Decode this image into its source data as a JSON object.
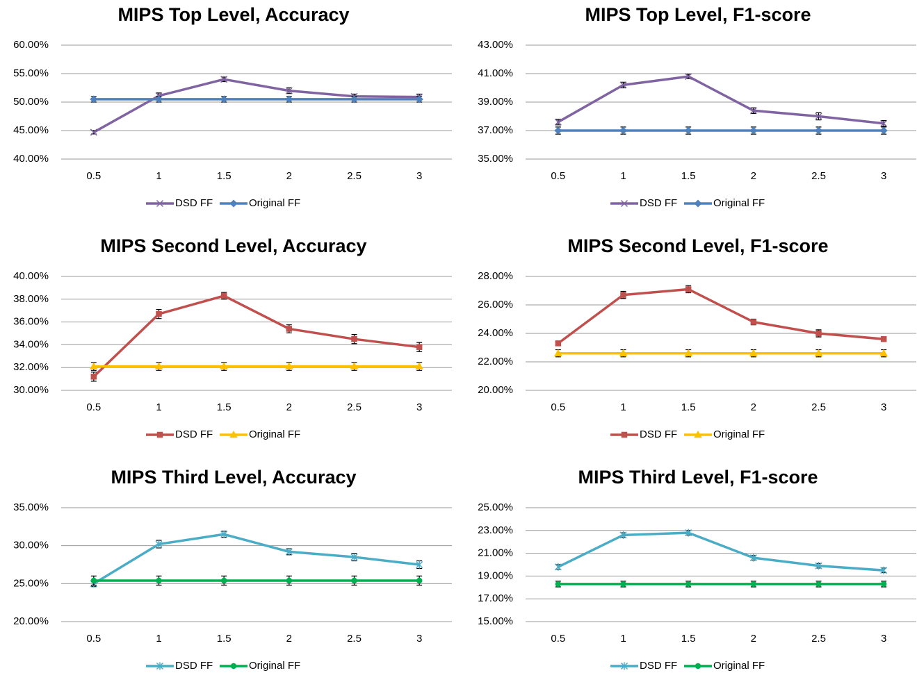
{
  "chart_data": [
    {
      "type": "line",
      "title": "MIPS Top Level, Accuracy",
      "categories": [
        "0.5",
        "1",
        "1.5",
        "2",
        "2.5",
        "3"
      ],
      "series": [
        {
          "name": "DSD FF",
          "color": "#8064a2",
          "marker": "x",
          "values": [
            44.7,
            51.1,
            54.0,
            52.0,
            51.0,
            50.9
          ],
          "errors": [
            0.3,
            0.5,
            0.4,
            0.5,
            0.4,
            0.5
          ]
        },
        {
          "name": "Original FF",
          "color": "#4f81bd",
          "marker": "diamond",
          "values": [
            50.5,
            50.5,
            50.5,
            50.5,
            50.5,
            50.5
          ],
          "errors": [
            0.5,
            0.5,
            0.5,
            0.5,
            0.5,
            0.5
          ]
        }
      ],
      "ylim": [
        40,
        60
      ],
      "yticks": [
        {
          "value": 40,
          "label": "40.00%"
        },
        {
          "value": 45,
          "label": "45.00%"
        },
        {
          "value": 50,
          "label": "50.00%"
        },
        {
          "value": 55,
          "label": "55.00%"
        },
        {
          "value": 60,
          "label": "60.00%"
        }
      ],
      "grid": true,
      "legend": "bottom"
    },
    {
      "type": "line",
      "title": "MIPS Top Level, F1-score",
      "categories": [
        "0.5",
        "1",
        "1.5",
        "2",
        "2.5",
        "3"
      ],
      "series": [
        {
          "name": "DSD FF",
          "color": "#8064a2",
          "marker": "x",
          "values": [
            37.6,
            40.2,
            40.8,
            38.4,
            38.0,
            37.5
          ],
          "errors": [
            0.2,
            0.2,
            0.15,
            0.2,
            0.25,
            0.2
          ]
        },
        {
          "name": "Original FF",
          "color": "#4f81bd",
          "marker": "diamond",
          "values": [
            37.0,
            37.0,
            37.0,
            37.0,
            37.0,
            37.0
          ],
          "errors": [
            0.25,
            0.25,
            0.25,
            0.25,
            0.25,
            0.25
          ]
        }
      ],
      "ylim": [
        35,
        43
      ],
      "yticks": [
        {
          "value": 35,
          "label": "35.00%"
        },
        {
          "value": 37,
          "label": "37.00%"
        },
        {
          "value": 39,
          "label": "39.00%"
        },
        {
          "value": 41,
          "label": "41.00%"
        },
        {
          "value": 43,
          "label": "43.00%"
        }
      ],
      "grid": true,
      "legend": "bottom"
    },
    {
      "type": "line",
      "title": "MIPS Second Level, Accuracy",
      "categories": [
        "0.5",
        "1",
        "1.5",
        "2",
        "2.5",
        "3"
      ],
      "series": [
        {
          "name": "DSD FF",
          "color": "#c0504d",
          "marker": "square",
          "values": [
            31.2,
            36.7,
            38.3,
            35.4,
            34.5,
            33.8
          ],
          "errors": [
            0.4,
            0.4,
            0.3,
            0.35,
            0.4,
            0.4
          ]
        },
        {
          "name": "Original FF",
          "color": "#ffc000",
          "marker": "triangle",
          "values": [
            32.1,
            32.1,
            32.1,
            32.1,
            32.1,
            32.1
          ],
          "errors": [
            0.35,
            0.35,
            0.35,
            0.35,
            0.35,
            0.35
          ]
        }
      ],
      "ylim": [
        30,
        40
      ],
      "yticks": [
        {
          "value": 30,
          "label": "30.00%"
        },
        {
          "value": 32,
          "label": "32.00%"
        },
        {
          "value": 34,
          "label": "34.00%"
        },
        {
          "value": 36,
          "label": "36.00%"
        },
        {
          "value": 38,
          "label": "38.00%"
        },
        {
          "value": 40,
          "label": "40.00%"
        }
      ],
      "grid": true,
      "legend": "bottom"
    },
    {
      "type": "line",
      "title": "MIPS Second Level, F1-score",
      "categories": [
        "0.5",
        "1",
        "1.5",
        "2",
        "2.5",
        "3"
      ],
      "series": [
        {
          "name": "DSD FF",
          "color": "#c0504d",
          "marker": "square",
          "values": [
            23.3,
            26.7,
            27.1,
            24.8,
            24.0,
            23.6
          ],
          "errors": [
            0.15,
            0.25,
            0.25,
            0.2,
            0.25,
            0.15
          ]
        },
        {
          "name": "Original FF",
          "color": "#ffc000",
          "marker": "triangle",
          "values": [
            22.6,
            22.6,
            22.6,
            22.6,
            22.6,
            22.6
          ],
          "errors": [
            0.25,
            0.25,
            0.25,
            0.25,
            0.25,
            0.25
          ]
        }
      ],
      "ylim": [
        20,
        28
      ],
      "yticks": [
        {
          "value": 20,
          "label": "20.00%"
        },
        {
          "value": 22,
          "label": "22.00%"
        },
        {
          "value": 24,
          "label": "24.00%"
        },
        {
          "value": 26,
          "label": "26.00%"
        },
        {
          "value": 28,
          "label": "28.00%"
        }
      ],
      "grid": true,
      "legend": "bottom"
    },
    {
      "type": "line",
      "title": "MIPS Third Level, Accuracy",
      "categories": [
        "0.5",
        "1",
        "1.5",
        "2",
        "2.5",
        "3"
      ],
      "series": [
        {
          "name": "DSD FF",
          "color": "#4bacc6",
          "marker": "star",
          "values": [
            25.0,
            30.2,
            31.5,
            29.2,
            28.5,
            27.5
          ],
          "errors": [
            0.4,
            0.5,
            0.4,
            0.4,
            0.5,
            0.5
          ]
        },
        {
          "name": "Original FF",
          "color": "#00b050",
          "marker": "circle",
          "values": [
            25.4,
            25.4,
            25.4,
            25.4,
            25.4,
            25.4
          ],
          "errors": [
            0.6,
            0.6,
            0.6,
            0.6,
            0.6,
            0.6
          ]
        }
      ],
      "ylim": [
        20,
        35
      ],
      "yticks": [
        {
          "value": 20,
          "label": "20.00%"
        },
        {
          "value": 25,
          "label": "25.00%"
        },
        {
          "value": 30,
          "label": "30.00%"
        },
        {
          "value": 35,
          "label": "35.00%"
        }
      ],
      "grid": true,
      "legend": "bottom"
    },
    {
      "type": "line",
      "title": "MIPS Third Level, F1-score",
      "categories": [
        "0.5",
        "1",
        "1.5",
        "2",
        "2.5",
        "3"
      ],
      "series": [
        {
          "name": "DSD FF",
          "color": "#4bacc6",
          "marker": "star",
          "values": [
            19.8,
            22.6,
            22.8,
            20.6,
            19.9,
            19.5
          ],
          "errors": [
            0.2,
            0.2,
            0.2,
            0.2,
            0.2,
            0.2
          ]
        },
        {
          "name": "Original FF",
          "color": "#00b050",
          "marker": "circle",
          "values": [
            18.3,
            18.3,
            18.3,
            18.3,
            18.3,
            18.3
          ],
          "errors": [
            0.25,
            0.25,
            0.25,
            0.25,
            0.25,
            0.25
          ]
        }
      ],
      "ylim": [
        15,
        25
      ],
      "yticks": [
        {
          "value": 15,
          "label": "15.00%"
        },
        {
          "value": 17,
          "label": "17.00%"
        },
        {
          "value": 19,
          "label": "19.00%"
        },
        {
          "value": 21,
          "label": "21.00%"
        },
        {
          "value": 23,
          "label": "23.00%"
        },
        {
          "value": 25,
          "label": "25.00%"
        }
      ],
      "grid": true,
      "legend": "bottom"
    }
  ]
}
